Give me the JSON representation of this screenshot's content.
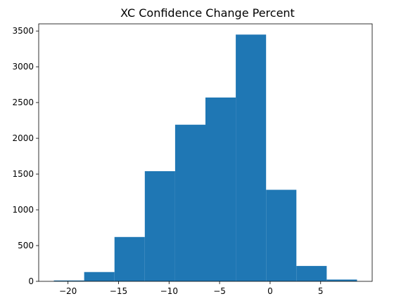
{
  "chart_data": {
    "type": "bar",
    "title": "XC Confidence Change Percent",
    "xlabel": "",
    "ylabel": "",
    "bin_edges": [
      -21.4,
      -18.4,
      -15.4,
      -12.4,
      -9.4,
      -6.4,
      -3.4,
      -0.4,
      2.6,
      5.6,
      8.6
    ],
    "values": [
      12,
      130,
      620,
      1540,
      2190,
      2570,
      3450,
      1280,
      215,
      25
    ],
    "xlim": [
      -22.9,
      10.1
    ],
    "ylim": [
      0,
      3600
    ],
    "x_ticks": [
      -20,
      -15,
      -10,
      -5,
      0,
      5
    ],
    "x_tick_labels": [
      "−20",
      "−15",
      "−10",
      "−5",
      "0",
      "5"
    ],
    "y_ticks": [
      0,
      500,
      1000,
      1500,
      2000,
      2500,
      3000,
      3500
    ],
    "y_tick_labels": [
      "0",
      "500",
      "1000",
      "1500",
      "2000",
      "2500",
      "3000",
      "3500"
    ],
    "grid": false,
    "bar_color": "#1f77b4"
  }
}
